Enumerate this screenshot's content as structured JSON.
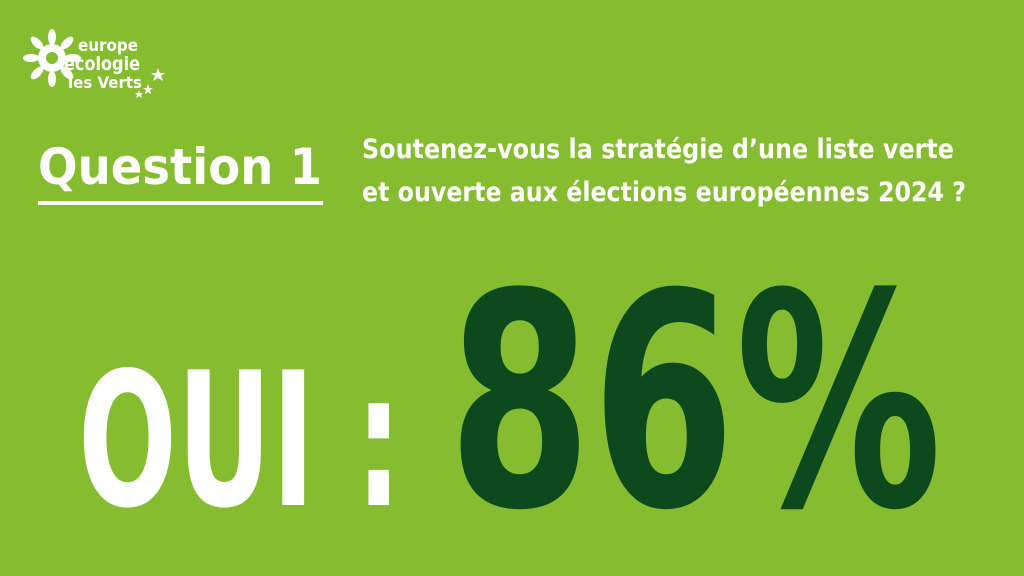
{
  "logo": {
    "lines": [
      "europe",
      "écologie",
      "les Verts"
    ]
  },
  "question": {
    "title": "Question 1",
    "lines": [
      "Soutenez-vous la stratégie d’une liste verte",
      "et ouverte aux élections européennes 2024 ?"
    ]
  },
  "result": {
    "label": "OUI :",
    "value": "86%"
  }
}
